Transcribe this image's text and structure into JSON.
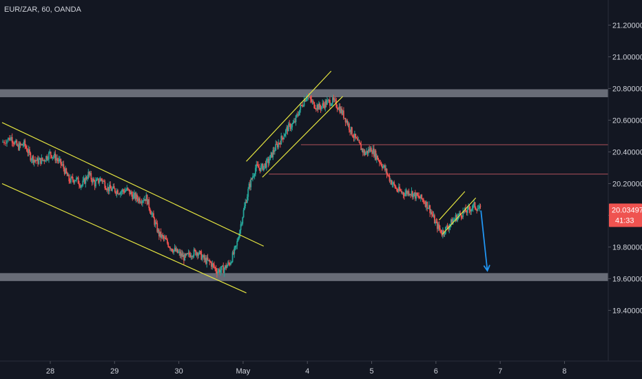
{
  "header": {
    "symbol_title": "EUR/ZAR, 60, OANDA"
  },
  "price_badge": {
    "price": "20.03497",
    "countdown": "41:33"
  },
  "colors": {
    "background": "#131722",
    "up_candle": "#26a69a",
    "down_candle": "#ef5350",
    "trendline": "#e6e640",
    "zone": "#787b86",
    "hline": "#b0515b",
    "arrow": "#2196f3",
    "badge": "#ef5350",
    "text": "#d1d4dc"
  },
  "chart_data": {
    "type": "candlestick",
    "title": "EUR/ZAR, 60, OANDA",
    "ylim": [
      19.28,
      21.28
    ],
    "y_ticks": [
      "21.20000",
      "21.00000",
      "20.80000",
      "20.60000",
      "20.40000",
      "20.20000",
      "20.00000",
      "19.80000",
      "19.60000",
      "19.40000"
    ],
    "y_tick_values": [
      21.2,
      21.0,
      20.8,
      20.6,
      20.4,
      20.2,
      20.0,
      19.8,
      19.6,
      19.4
    ],
    "x_ticks": [
      "28",
      "29",
      "30",
      "May",
      "4",
      "5",
      "6",
      "7",
      "8"
    ],
    "x_tick_positions": [
      0.5,
      1.5,
      2.5,
      3.5,
      4.5,
      5.5,
      6.5,
      7.5,
      8.5
    ],
    "xlim": [
      -0.25,
      9.0
    ],
    "last_price": 20.03497,
    "series_close": [
      {
        "t": -0.25,
        "c": 20.46
      },
      {
        "t": -0.1,
        "c": 20.49
      },
      {
        "t": 0.0,
        "c": 20.43
      },
      {
        "t": 0.1,
        "c": 20.45
      },
      {
        "t": 0.2,
        "c": 20.37
      },
      {
        "t": 0.3,
        "c": 20.34
      },
      {
        "t": 0.4,
        "c": 20.35
      },
      {
        "t": 0.5,
        "c": 20.39
      },
      {
        "t": 0.6,
        "c": 20.36
      },
      {
        "t": 0.7,
        "c": 20.31
      },
      {
        "t": 0.8,
        "c": 20.22
      },
      {
        "t": 0.9,
        "c": 20.23
      },
      {
        "t": 1.0,
        "c": 20.19
      },
      {
        "t": 1.1,
        "c": 20.26
      },
      {
        "t": 1.2,
        "c": 20.2
      },
      {
        "t": 1.3,
        "c": 20.23
      },
      {
        "t": 1.4,
        "c": 20.17
      },
      {
        "t": 1.5,
        "c": 20.16
      },
      {
        "t": 1.6,
        "c": 20.15
      },
      {
        "t": 1.7,
        "c": 20.16
      },
      {
        "t": 1.8,
        "c": 20.12
      },
      {
        "t": 1.9,
        "c": 20.1
      },
      {
        "t": 2.0,
        "c": 20.11
      },
      {
        "t": 2.1,
        "c": 19.99
      },
      {
        "t": 2.2,
        "c": 19.88
      },
      {
        "t": 2.3,
        "c": 19.84
      },
      {
        "t": 2.4,
        "c": 19.79
      },
      {
        "t": 2.5,
        "c": 19.76
      },
      {
        "t": 2.6,
        "c": 19.73
      },
      {
        "t": 2.7,
        "c": 19.76
      },
      {
        "t": 2.8,
        "c": 19.77
      },
      {
        "t": 2.9,
        "c": 19.72
      },
      {
        "t": 3.0,
        "c": 19.7
      },
      {
        "t": 3.1,
        "c": 19.65
      },
      {
        "t": 3.2,
        "c": 19.66
      },
      {
        "t": 3.3,
        "c": 19.7
      },
      {
        "t": 3.4,
        "c": 19.8
      },
      {
        "t": 3.5,
        "c": 20.0
      },
      {
        "t": 3.6,
        "c": 20.18
      },
      {
        "t": 3.7,
        "c": 20.3
      },
      {
        "t": 3.8,
        "c": 20.3
      },
      {
        "t": 3.9,
        "c": 20.34
      },
      {
        "t": 4.0,
        "c": 20.42
      },
      {
        "t": 4.1,
        "c": 20.48
      },
      {
        "t": 4.2,
        "c": 20.55
      },
      {
        "t": 4.3,
        "c": 20.58
      },
      {
        "t": 4.4,
        "c": 20.68
      },
      {
        "t": 4.5,
        "c": 20.76
      },
      {
        "t": 4.6,
        "c": 20.7
      },
      {
        "t": 4.7,
        "c": 20.68
      },
      {
        "t": 4.8,
        "c": 20.71
      },
      {
        "t": 4.9,
        "c": 20.72
      },
      {
        "t": 5.0,
        "c": 20.68
      },
      {
        "t": 5.1,
        "c": 20.61
      },
      {
        "t": 5.2,
        "c": 20.52
      },
      {
        "t": 5.3,
        "c": 20.45
      },
      {
        "t": 5.4,
        "c": 20.39
      },
      {
        "t": 5.5,
        "c": 20.42
      },
      {
        "t": 5.6,
        "c": 20.36
      },
      {
        "t": 5.7,
        "c": 20.3
      },
      {
        "t": 5.8,
        "c": 20.22
      },
      {
        "t": 5.9,
        "c": 20.16
      },
      {
        "t": 6.0,
        "c": 20.14
      },
      {
        "t": 6.1,
        "c": 20.15
      },
      {
        "t": 6.2,
        "c": 20.12
      },
      {
        "t": 6.3,
        "c": 20.1
      },
      {
        "t": 6.4,
        "c": 20.05
      },
      {
        "t": 6.5,
        "c": 19.95
      },
      {
        "t": 6.6,
        "c": 19.89
      },
      {
        "t": 6.7,
        "c": 19.93
      },
      {
        "t": 6.8,
        "c": 19.98
      },
      {
        "t": 6.9,
        "c": 20.01
      },
      {
        "t": 7.0,
        "c": 20.03
      },
      {
        "t": 7.1,
        "c": 20.06
      },
      {
        "t": 7.2,
        "c": 20.035
      }
    ],
    "zones": [
      {
        "from": 20.745,
        "to": 20.795
      },
      {
        "from": 19.585,
        "to": 19.635
      }
    ],
    "horizontal_lines": [
      {
        "price": 20.445,
        "t_start": 4.4,
        "t_end": 9.0
      },
      {
        "price": 20.26,
        "t_start": 3.9,
        "t_end": 9.0
      }
    ],
    "trendlines": [
      {
        "t1": -0.25,
        "p1": 20.585,
        "t2": 3.82,
        "p2": 19.805
      },
      {
        "t1": -0.25,
        "p1": 20.2,
        "t2": 3.55,
        "p2": 19.51
      },
      {
        "t1": 3.55,
        "p1": 20.34,
        "t2": 4.87,
        "p2": 20.91
      },
      {
        "t1": 3.8,
        "p1": 20.24,
        "t2": 5.05,
        "p2": 20.75
      },
      {
        "t1": 6.55,
        "p1": 19.97,
        "t2": 6.95,
        "p2": 20.15
      },
      {
        "t1": 6.6,
        "p1": 19.88,
        "t2": 7.12,
        "p2": 20.11
      }
    ],
    "arrow": {
      "t_start": 7.2,
      "p_start": 20.03,
      "t_end": 7.3,
      "p_end": 19.65
    }
  }
}
